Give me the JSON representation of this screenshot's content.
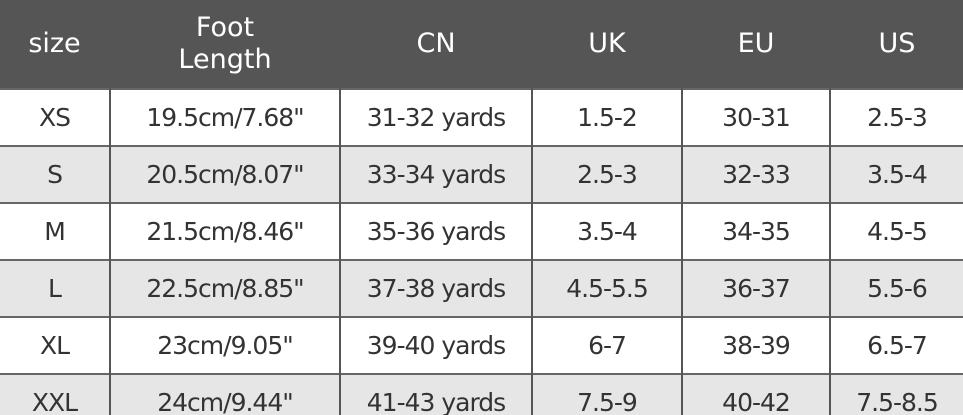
{
  "table": {
    "header": [
      "size",
      "Foot Length",
      "CN",
      "UK",
      "EU",
      "US"
    ],
    "rows": [
      [
        "XS",
        "19.5cm/7.68\"",
        "31-32 yards",
        "1.5-2",
        "30-31",
        "2.5-3"
      ],
      [
        "S",
        "20.5cm/8.07\"",
        "33-34 yards",
        "2.5-3",
        "32-33",
        "3.5-4"
      ],
      [
        "M",
        "21.5cm/8.46\"",
        "35-36 yards",
        "3.5-4",
        "34-35",
        "4.5-5"
      ],
      [
        "L",
        "22.5cm/8.85\"",
        "37-38 yards",
        "4.5-5.5",
        "36-37",
        "5.5-6"
      ],
      [
        "XL",
        "23cm/9.05\"",
        "39-40 yards",
        "6-7",
        "38-39",
        "6.5-7"
      ],
      [
        "XXL",
        "24cm/9.44\"",
        "41-43 yards",
        "7.5-9",
        "40-42",
        "7.5-8.5"
      ]
    ]
  }
}
